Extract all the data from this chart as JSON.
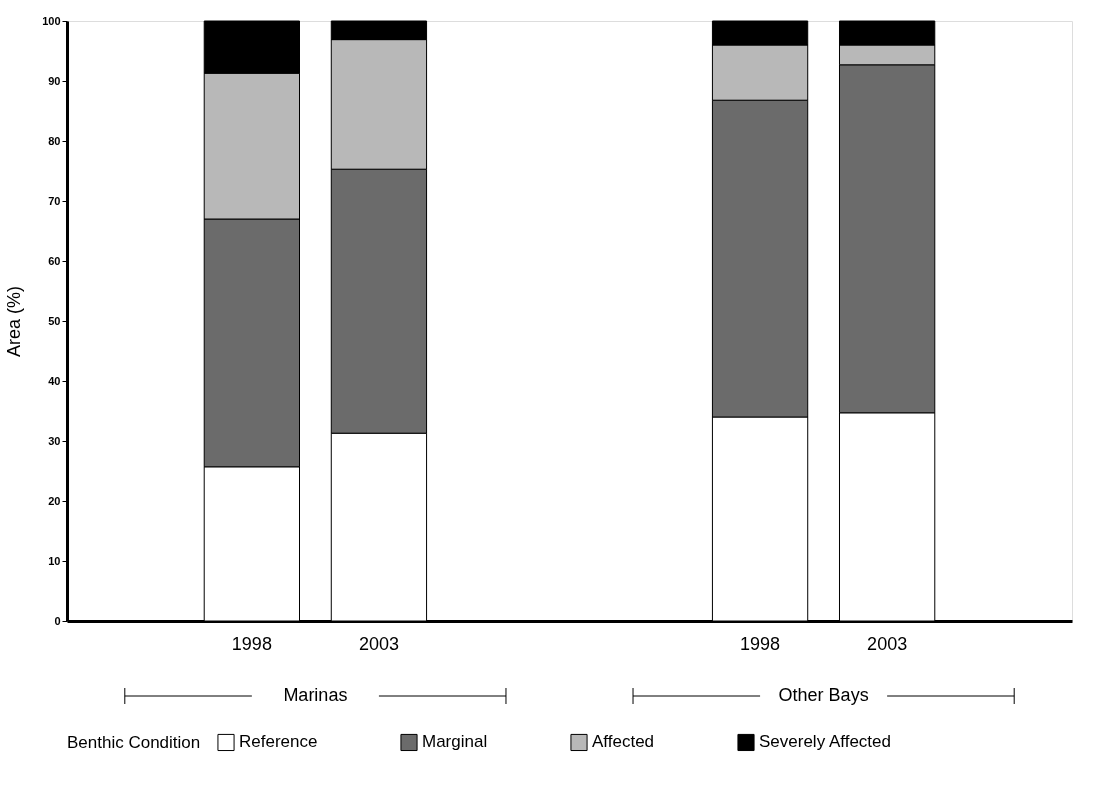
{
  "chart_data": {
    "type": "bar",
    "stacked": true,
    "ylabel": "Area (%)",
    "legend_title": "Benthic Condition",
    "legend": "bottom",
    "categories": [
      "1998",
      "2003",
      "1998",
      "2003"
    ],
    "series": [
      {
        "name": "Reference",
        "color": "#ffffff",
        "values": [
          25.7,
          31.3,
          34.0,
          34.7
        ]
      },
      {
        "name": "Marginal",
        "color": "#6b6b6b",
        "values": [
          41.3,
          44.0,
          52.8,
          58.0
        ]
      },
      {
        "name": "Affected",
        "color": "#b8b8b8",
        "values": [
          24.3,
          21.6,
          9.2,
          3.3
        ]
      },
      {
        "name": "Severely Affected",
        "color": "#000000",
        "values": [
          8.7,
          3.1,
          4.0,
          4.0
        ]
      }
    ],
    "ylim": [
      0,
      100
    ],
    "yticks": [
      0,
      10,
      20,
      30,
      40,
      50,
      60,
      70,
      80,
      90,
      100
    ],
    "annotations": [
      "Marinas",
      "Other Bays"
    ]
  }
}
